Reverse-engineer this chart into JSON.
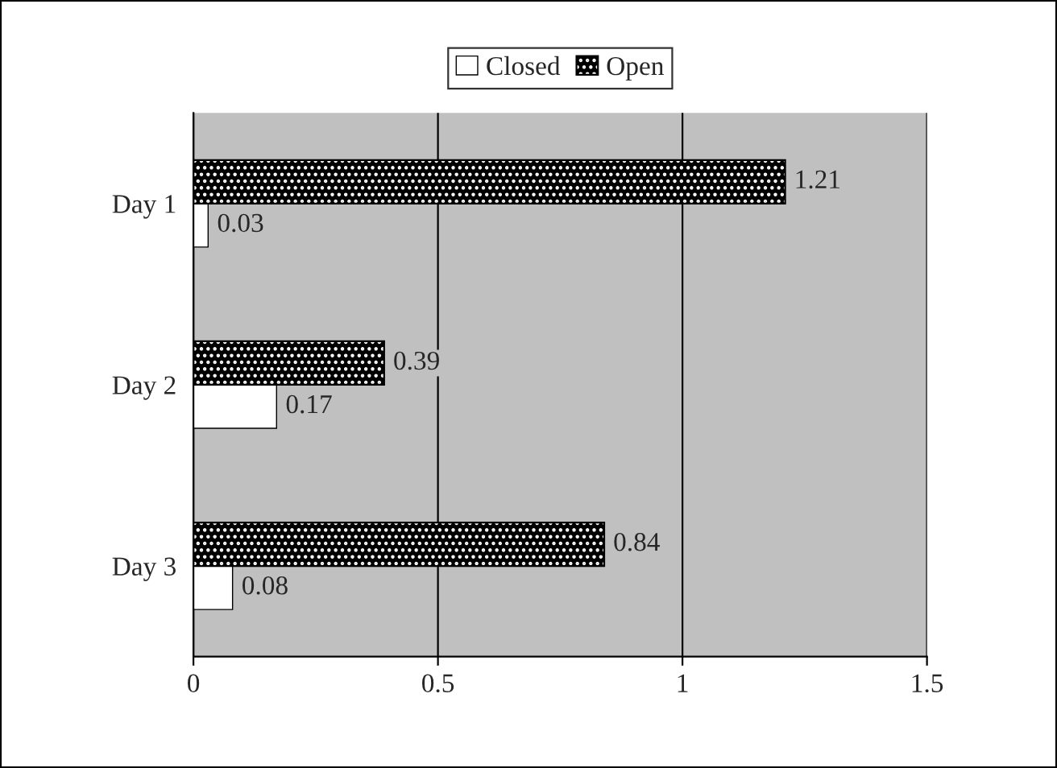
{
  "chart_data": {
    "type": "bar",
    "orientation": "horizontal",
    "categories": [
      "Day 1",
      "Day 2",
      "Day 3"
    ],
    "series": [
      {
        "name": "Closed",
        "color": "#ffffff",
        "values": [
          0.03,
          0.17,
          0.08
        ]
      },
      {
        "name": "Open",
        "color": "#000000",
        "values": [
          1.21,
          0.39,
          0.84
        ]
      }
    ],
    "xlim": [
      0,
      1.5
    ],
    "xticks": [
      0,
      0.5,
      1,
      1.5
    ],
    "grid": "x",
    "legend": "top",
    "data_labels": true
  }
}
